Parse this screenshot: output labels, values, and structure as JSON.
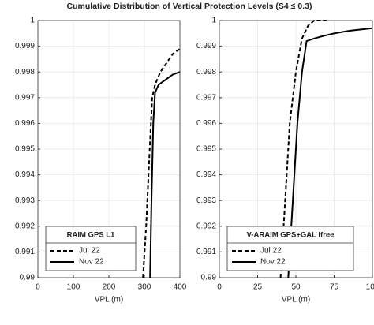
{
  "title": "Cumulative Distribution of Vertical Protection Levels (S4 ≤ 0.3)",
  "chart_data": [
    {
      "type": "line",
      "legend_title": "RAIM GPS L1",
      "xlabel": "VPL (m)",
      "legend": "lower left",
      "grid": true,
      "xlim": [
        0,
        400
      ],
      "xticks": [
        0,
        100,
        200,
        300,
        400
      ],
      "ylim": [
        0.99,
        1
      ],
      "yticks": [
        0.99,
        0.991,
        0.992,
        0.993,
        0.994,
        0.995,
        0.996,
        0.997,
        0.998,
        0.999,
        1
      ],
      "series": [
        {
          "name": "Jul 22",
          "color": "#000000",
          "line_style": "dashed",
          "x": [
            296,
            305,
            315,
            322,
            330,
            345,
            365,
            380,
            400
          ],
          "values": [
            0.99,
            0.992,
            0.995,
            0.997,
            0.9975,
            0.998,
            0.9984,
            0.9987,
            0.9989
          ]
        },
        {
          "name": "Nov 22",
          "color": "#000000",
          "line_style": "solid",
          "x": [
            316,
            320,
            325,
            330,
            340,
            360,
            380,
            400
          ],
          "values": [
            0.99,
            0.993,
            0.996,
            0.9972,
            0.9975,
            0.9977,
            0.9979,
            0.998
          ]
        }
      ]
    },
    {
      "type": "line",
      "legend_title": "V-ARAIM GPS+GAL Ifree",
      "xlabel": "VPL (m)",
      "legend": "lower left",
      "grid": true,
      "xlim": [
        0,
        100
      ],
      "xticks": [
        0,
        25,
        50,
        75,
        100
      ],
      "ylim": [
        0.99,
        1
      ],
      "yticks": [
        0.99,
        0.991,
        0.992,
        0.993,
        0.994,
        0.995,
        0.996,
        0.997,
        0.998,
        0.999,
        1
      ],
      "series": [
        {
          "name": "Jul 22",
          "color": "#000000",
          "line_style": "dashed",
          "x": [
            40,
            43,
            46,
            50,
            54,
            58,
            62,
            70
          ],
          "values": [
            0.99,
            0.993,
            0.996,
            0.998,
            0.9993,
            0.9998,
            1,
            1
          ]
        },
        {
          "name": "Nov 22",
          "color": "#000000",
          "line_style": "solid",
          "x": [
            45,
            48,
            51,
            54,
            57,
            62,
            68,
            75,
            85,
            100
          ],
          "values": [
            0.99,
            0.993,
            0.996,
            0.998,
            0.9992,
            0.9993,
            0.9994,
            0.9995,
            0.9996,
            0.9997
          ]
        }
      ]
    }
  ]
}
